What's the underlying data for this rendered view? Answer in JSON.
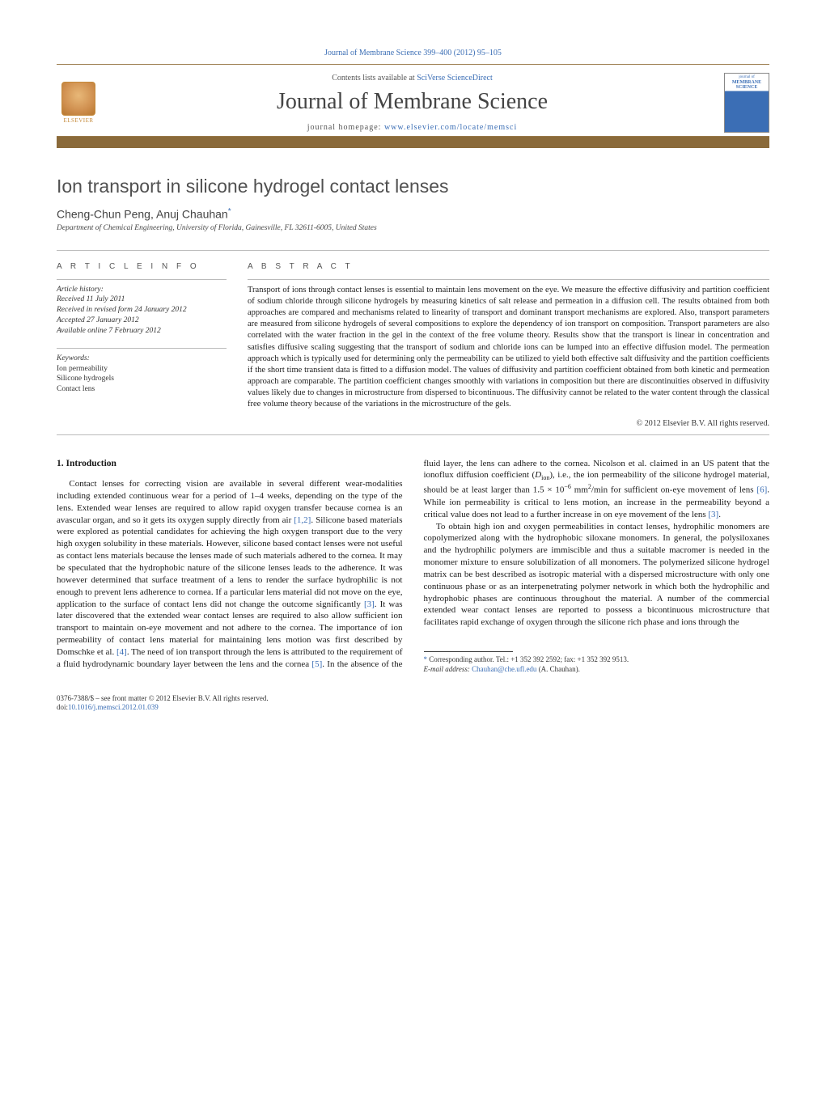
{
  "citation": "Journal of Membrane Science 399–400 (2012) 95–105",
  "header": {
    "contents_prefix": "Contents lists available at ",
    "contents_link": "SciVerse ScienceDirect",
    "journal_name": "Journal of Membrane Science",
    "homepage_prefix": "journal homepage: ",
    "homepage_link": "www.elsevier.com/locate/memsci",
    "publisher_name": "ELSEVIER",
    "cover_small_title": "journal of",
    "cover_main_title": "MEMBRANE SCIENCE"
  },
  "title": "Ion transport in silicone hydrogel contact lenses",
  "authors_html": "Cheng-Chun Peng, Anuj Chauhan",
  "corr_marker": "*",
  "affiliation": "Department of Chemical Engineering, University of Florida, Gainesville, FL 32611-6005, United States",
  "meta": {
    "info_heading": "A R T I C L E   I N F O",
    "abstract_heading": "A B S T R A C T",
    "history_label": "Article history:",
    "received": "Received 11 July 2011",
    "revised": "Received in revised form 24 January 2012",
    "accepted": "Accepted 27 January 2012",
    "online": "Available online 7 February 2012",
    "keywords_label": "Keywords:",
    "keywords": [
      "Ion permeability",
      "Silicone hydrogels",
      "Contact lens"
    ]
  },
  "abstract": "Transport of ions through contact lenses is essential to maintain lens movement on the eye. We measure the effective diffusivity and partition coefficient of sodium chloride through silicone hydrogels by measuring kinetics of salt release and permeation in a diffusion cell. The results obtained from both approaches are compared and mechanisms related to linearity of transport and dominant transport mechanisms are explored. Also, transport parameters are measured from silicone hydrogels of several compositions to explore the dependency of ion transport on composition. Transport parameters are also correlated with the water fraction in the gel in the context of the free volume theory. Results show that the transport is linear in concentration and satisfies diffusive scaling suggesting that the transport of sodium and chloride ions can be lumped into an effective diffusion model. The permeation approach which is typically used for determining only the permeability can be utilized to yield both effective salt diffusivity and the partition coefficients if the short time transient data is fitted to a diffusion model. The values of diffusivity and partition coefficient obtained from both kinetic and permeation approach are comparable. The partition coefficient changes smoothly with variations in composition but there are discontinuities observed in diffusivity values likely due to changes in microstructure from dispersed to bicontinuous. The diffusivity cannot be related to the water content through the classical free volume theory because of the variations in the microstructure of the gels.",
  "copyright": "© 2012 Elsevier B.V. All rights reserved.",
  "section1_heading": "1.  Introduction",
  "intro_p1_a": "Contact lenses for correcting vision are available in several different wear-modalities including extended continuous wear for a period of 1–4 weeks, depending on the type of the lens. Extended wear lenses are required to allow rapid oxygen transfer because cornea is an avascular organ, and so it gets its oxygen supply directly from air ",
  "intro_ref12": "[1,2]",
  "intro_p1_b": ". Silicone based materials were explored as potential candidates for achieving the high oxygen transport due to the very high oxygen solubility in these materials. However, silicone based contact lenses were not useful as contact lens materials because the lenses made of such materials adhered to the cornea. It may be speculated that the hydrophobic nature of the silicone lenses leads to the adherence. It was however determined that surface treatment of a lens to render the surface hydrophilic is not enough to prevent lens adherence to cornea. If a particular lens material did not move on the eye, application to the surface of contact lens did not change the outcome significantly ",
  "intro_ref3a": "[3]",
  "intro_p1_c": ". It was later discovered that the extended wear contact lenses are required to also allow sufficient ion transport to maintain on-eye movement and not adhere to the cornea. The importance of ion permeability of contact lens material for maintaining lens motion was first described by Domschke et al. ",
  "intro_ref4": "[4]",
  "intro_p1_d": ". The need of ion transport through the lens is attributed to the requirement of a fluid hydrodynamic boundary layer between the lens and the cornea ",
  "intro_ref5": "[5]",
  "intro_p1_e": ". In the absence of the fluid layer, the lens can adhere to the cornea. Nicolson et al. claimed in an US patent that the ionoflux diffusion coefficient (",
  "intro_Dion": "D",
  "intro_Dion_sub": "ion",
  "intro_p1_f": "), i.e., the ion permeability of the silicone hydrogel material, should be at least larger than 1.5 × 10",
  "intro_exp": "−6",
  "intro_p1_g": " mm",
  "intro_mm2": "2",
  "intro_p1_h": "/min for sufficient on-eye movement of lens ",
  "intro_ref6": "[6]",
  "intro_p1_i": ". While ion permeability is critical to lens motion, an increase in the permeability beyond a critical value does not lead to a further increase in on eye movement of the lens ",
  "intro_ref3b": "[3]",
  "intro_p1_j": ".",
  "intro_p2": "To obtain high ion and oxygen permeabilities in contact lenses, hydrophilic monomers are copolymerized along with the hydrophobic siloxane monomers. In general, the polysiloxanes and the hydrophilic polymers are immiscible and thus a suitable macromer is needed in the monomer mixture to ensure solubilization of all monomers. The polymerized silicone hydrogel matrix can be best described as isotropic material with a dispersed microstructure with only one continuous phase or as an interpenetrating polymer network in which both the hydrophilic and hydrophobic phases are continuous throughout the material. A number of the commercial extended wear contact lenses are reported to possess a bicontinuous microstructure that facilitates rapid exchange of oxygen through the silicone rich phase and ions through the",
  "footnote": {
    "corr_label": "Corresponding author. Tel.: +1 352 392 2592; fax: +1 352 392 9513.",
    "email_label": "E-mail address:",
    "email": "Chauhan@che.ufl.edu",
    "email_name": " (A. Chauhan)."
  },
  "bottom": {
    "issn_line": "0376-7388/$ – see front matter © 2012 Elsevier B.V. All rights reserved.",
    "doi_prefix": "doi:",
    "doi": "10.1016/j.memsci.2012.01.039"
  },
  "colors": {
    "link": "#3b6eb5",
    "accent_bar": "#8a6a3a",
    "rule": "#9a7a4a"
  }
}
